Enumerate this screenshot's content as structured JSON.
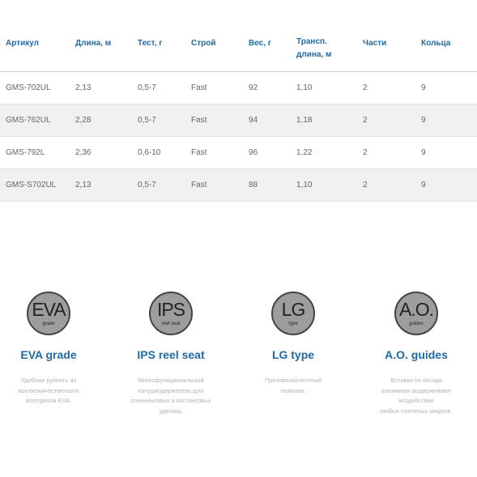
{
  "table": {
    "headers": [
      "Артикул",
      "Длина, м",
      "Тест, г",
      "Строй",
      "Вес, г",
      "Трансп. длина, м",
      "Части",
      "Кольца"
    ],
    "rows": [
      [
        "GMS-702UL",
        "2,13",
        "0,5-7",
        "Fast",
        "92",
        "1,10",
        "2",
        "9"
      ],
      [
        "GMS-762UL",
        "2,28",
        "0,5-7",
        "Fast",
        "94",
        "1,18",
        "2",
        "9"
      ],
      [
        "GMS-792L",
        "2,36",
        "0,6-10",
        "Fast",
        "96",
        "1,22",
        "2",
        "9"
      ],
      [
        "GMS-S702UL",
        "2,13",
        "0,5-7",
        "Fast",
        "88",
        "1,10",
        "2",
        "9"
      ]
    ]
  },
  "features": [
    {
      "abbr": "EVA",
      "sub": "grade",
      "title": "EVA grade",
      "icon": "eva-badge-icon",
      "desc": [
        "Удобная рукоять из",
        "высококачественного",
        "материала EVA."
      ]
    },
    {
      "abbr": "IPS",
      "sub": "reel seat",
      "title": "IPS reel seat",
      "icon": "ips-badge-icon",
      "desc": [
        "Многофункциональный",
        "катушкодержатель для",
        "спиннинговых и кастинговых",
        "удилищ."
      ]
    },
    {
      "abbr": "LG",
      "sub": "type",
      "title": "LG type",
      "icon": "lg-badge-icon",
      "desc": [
        "Противозахлестный",
        "тюльпан."
      ]
    },
    {
      "abbr": "A.O.",
      "sub": "guides",
      "title": "A.O. guides",
      "icon": "ao-badge-icon",
      "desc": [
        "Вставки из оксида",
        "алюминия выдерживают",
        "воздействие",
        "любых плетеных шнуров."
      ]
    }
  ],
  "colors": {
    "accent": "#1f6aa5",
    "row_shade": "#f0f0f0",
    "badge_fill": "#9d9d9d"
  }
}
